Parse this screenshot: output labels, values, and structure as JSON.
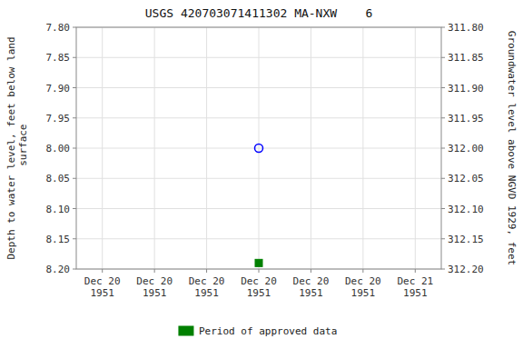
{
  "chart_data": {
    "type": "scatter",
    "title": "USGS 420703071411302 MA-NXW    6",
    "ylabel": "Depth to water level, feet below land\n surface",
    "y2label": "Groundwater level above NGVD 1929, feet",
    "categories": [
      "Dec 20\n1951",
      "Dec 20\n1951",
      "Dec 20\n1951",
      "Dec 20\n1951",
      "Dec 20\n1951",
      "Dec 20\n1951",
      "Dec 21\n1951"
    ],
    "series": [
      {
        "color": "blue",
        "marker": "circle-open",
        "values": [
          null,
          null,
          null,
          8.0,
          null,
          null,
          null
        ]
      },
      {
        "name": "Period of approved data",
        "color": "#008000",
        "marker": "square",
        "values": [
          null,
          null,
          null,
          8.19,
          null,
          null,
          null
        ]
      }
    ],
    "ylim": [
      8.2,
      7.8
    ],
    "yticks": [
      {
        "value": 7.8,
        "label": "7.80"
      },
      7.85,
      {
        "value": 7.9,
        "label": "7.90"
      },
      7.95,
      {
        "value": 8.0,
        "label": "8.00"
      },
      8.05,
      {
        "value": 8.1,
        "label": "8.10"
      },
      8.15,
      {
        "value": 8.2,
        "label": "8.20"
      }
    ],
    "y2lim": [
      312.2,
      311.8
    ],
    "y2ticks": [
      {
        "value": 312.2,
        "label": "312.20"
      },
      312.15,
      {
        "value": 312.1,
        "label": "312.10"
      },
      312.05,
      {
        "value": 312.0,
        "label": "312.00"
      },
      311.95,
      {
        "value": 311.9,
        "label": "311.90"
      },
      311.85,
      {
        "value": 311.8,
        "label": "311.80"
      }
    ],
    "grid": true,
    "legend": "bottom"
  }
}
